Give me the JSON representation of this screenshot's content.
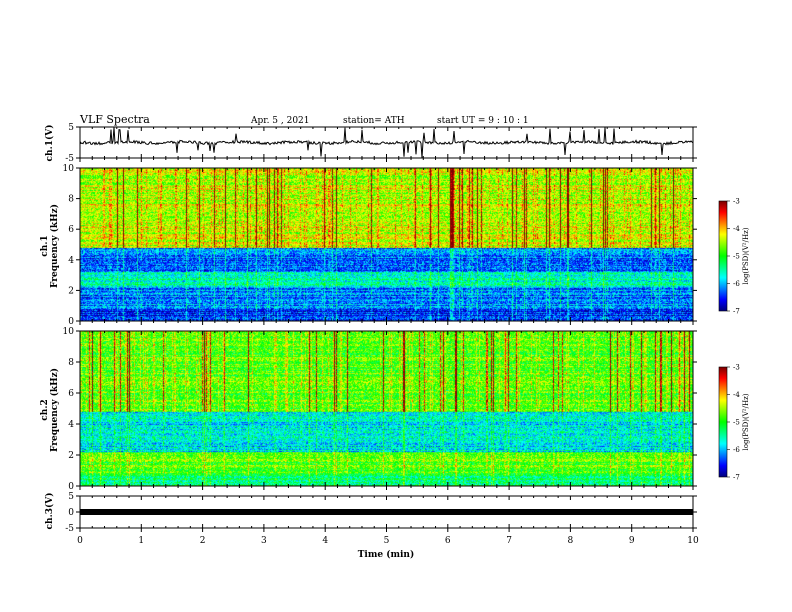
{
  "header": {
    "title": "VLF Spectra",
    "date": "Apr. 5 , 2021",
    "station": "station= ATH",
    "start": "start UT = 9 : 10 : 1"
  },
  "colors": {
    "palette": [
      "#000080",
      "#0000ff",
      "#0080ff",
      "#00ffff",
      "#00ff80",
      "#00ff00",
      "#80ff00",
      "#ffff00",
      "#ff8000",
      "#ff0000",
      "#800000"
    ],
    "waveform": "#000000",
    "axis": "#000000"
  },
  "chart_data": [
    {
      "type": "line",
      "panel": "ch1-waveform",
      "ylabel": "ch.1(V)",
      "ylim": [
        -5,
        5
      ],
      "yticks": [
        "5",
        "-5"
      ],
      "xlim": [
        0,
        10
      ],
      "description_values": {
        "baseline": 0,
        "typical_range": [
          -1.5,
          1.5
        ],
        "spikes_to": [
          -5,
          5
        ]
      }
    },
    {
      "type": "heatmap",
      "panel": "ch1-spectrogram",
      "ylabel": "ch.1\nFrequency (kHz)",
      "ylabel_line1": "ch.1",
      "ylabel_line2": "Frequency (kHz)",
      "ylim": [
        0,
        10
      ],
      "yticks": [
        "0",
        "2",
        "4",
        "6",
        "8",
        "10"
      ],
      "xlim": [
        0,
        10
      ],
      "colorbar": {
        "label": "log(PSD)(V²/Hz)",
        "min": -7,
        "max": -3,
        "ticks": [
          "-3",
          "-4",
          "-5",
          "-6",
          "-7"
        ]
      },
      "bands_khz": [
        {
          "range": [
            0,
            0.8
          ],
          "level": -6.5
        },
        {
          "range": [
            0.8,
            2.2
          ],
          "level": -6.2
        },
        {
          "range": [
            2.2,
            3.2
          ],
          "level": -5.6
        },
        {
          "range": [
            3.2,
            4.8
          ],
          "level": -6.3
        },
        {
          "range": [
            4.8,
            10
          ],
          "level": -4.4
        }
      ]
    },
    {
      "type": "heatmap",
      "panel": "ch2-spectrogram",
      "ylabel": "ch.2\nFrequency (kHz)",
      "ylabel_line1": "ch.2",
      "ylabel_line2": "Frequency (kHz)",
      "ylim": [
        0,
        10
      ],
      "yticks": [
        "0",
        "2",
        "4",
        "6",
        "8",
        "10"
      ],
      "xlim": [
        0,
        10
      ],
      "colorbar": {
        "label": "log(PSD)(V²/Hz)",
        "min": -7,
        "max": -3,
        "ticks": [
          "-3",
          "-4",
          "-5",
          "-6",
          "-7"
        ]
      },
      "bands_khz": [
        {
          "range": [
            0,
            0.8
          ],
          "level": -5.3
        },
        {
          "range": [
            0.8,
            2.2
          ],
          "level": -4.8
        },
        {
          "range": [
            2.2,
            4.8
          ],
          "level": -5.8
        },
        {
          "range": [
            4.8,
            10
          ],
          "level": -4.8
        }
      ]
    },
    {
      "type": "line",
      "panel": "ch3-waveform",
      "ylabel": "ch.3(V)",
      "ylim": [
        -5,
        5
      ],
      "yticks": [
        "5",
        "0",
        "-5"
      ],
      "xlim": [
        0,
        10
      ],
      "xlabel": "Time (min)",
      "xticks": [
        "0",
        "1",
        "2",
        "3",
        "4",
        "5",
        "6",
        "7",
        "8",
        "9",
        "10"
      ],
      "description_values": {
        "baseline": 0
      }
    }
  ]
}
